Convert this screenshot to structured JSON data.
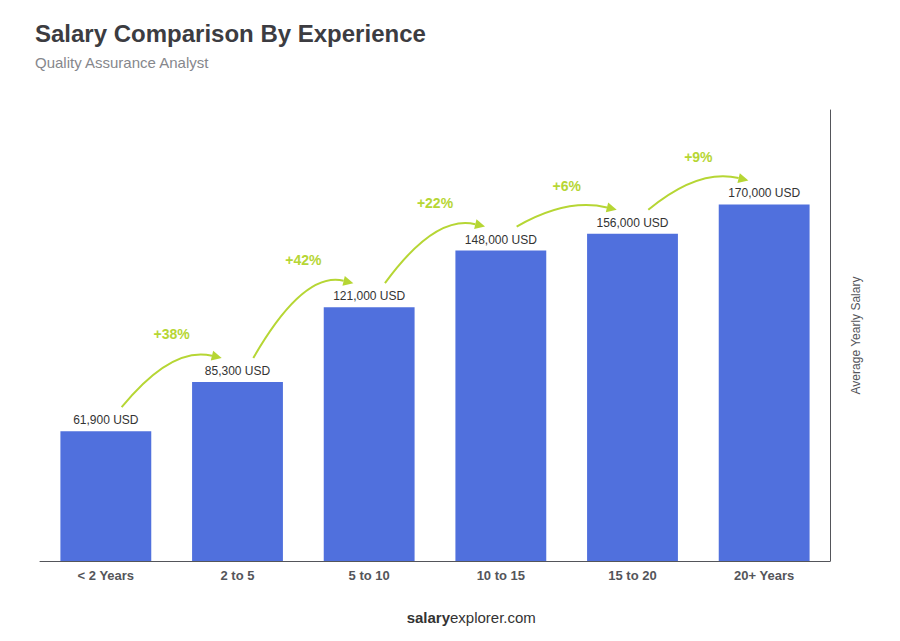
{
  "chart_data": {
    "type": "bar",
    "title": "Salary Comparison By Experience",
    "subtitle": "Quality Assurance Analyst",
    "ylabel": "Average Yearly Salary",
    "categories": [
      "< 2 Years",
      "2 to 5",
      "5 to 10",
      "10 to 15",
      "15 to 20",
      "20+ Years"
    ],
    "values": [
      61900,
      85300,
      121000,
      148000,
      156000,
      170000
    ],
    "value_labels": [
      "61,900 USD",
      "85,300 USD",
      "121,000 USD",
      "148,000 USD",
      "156,000 USD",
      "170,000 USD"
    ],
    "data_labels": true,
    "annotations": [
      "+38%",
      "+42%",
      "+22%",
      "+6%",
      "+9%"
    ],
    "footer": [
      "salary",
      "explorer.com"
    ],
    "ylim": [
      0,
      215000
    ],
    "grid": false,
    "tick_labels": "x"
  }
}
